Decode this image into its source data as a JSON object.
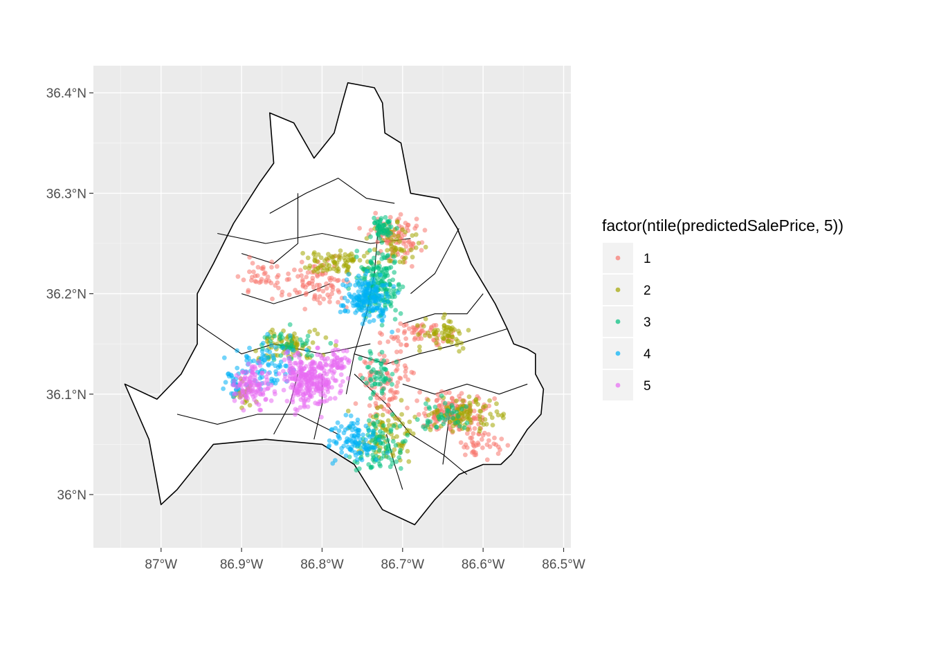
{
  "chart_data": {
    "type": "scatter",
    "title": "",
    "xlabel": "",
    "ylabel": "",
    "xlim": [
      -87.084,
      -86.491
    ],
    "ylim": [
      35.947,
      36.427
    ],
    "x_ticks": [
      {
        "value": -87.0,
        "label": "87°W"
      },
      {
        "value": -86.9,
        "label": "86.9°W"
      },
      {
        "value": -86.8,
        "label": "86.8°W"
      },
      {
        "value": -86.7,
        "label": "86.7°W"
      },
      {
        "value": -86.6,
        "label": "86.6°W"
      },
      {
        "value": -86.5,
        "label": "86.5°W"
      }
    ],
    "y_ticks": [
      {
        "value": 36.0,
        "label": "36°N"
      },
      {
        "value": 36.1,
        "label": "36.1°N"
      },
      {
        "value": 36.2,
        "label": "36.2°N"
      },
      {
        "value": 36.3,
        "label": "36.3°N"
      },
      {
        "value": 36.4,
        "label": "36.4°N"
      }
    ],
    "grid": true,
    "panel_background": "#ebebeb",
    "boundary_outline": [
      [
        -86.768,
        36.41
      ],
      [
        -86.735,
        36.405
      ],
      [
        -86.725,
        36.39
      ],
      [
        -86.722,
        36.36
      ],
      [
        -86.702,
        36.35
      ],
      [
        -86.69,
        36.3
      ],
      [
        -86.655,
        36.295
      ],
      [
        -86.632,
        36.265
      ],
      [
        -86.615,
        36.23
      ],
      [
        -86.6,
        36.21
      ],
      [
        -86.585,
        36.19
      ],
      [
        -86.57,
        36.165
      ],
      [
        -86.562,
        36.15
      ],
      [
        -86.545,
        36.145
      ],
      [
        -86.535,
        36.14
      ],
      [
        -86.535,
        36.12
      ],
      [
        -86.525,
        36.105
      ],
      [
        -86.528,
        36.08
      ],
      [
        -86.545,
        36.065
      ],
      [
        -86.565,
        36.04
      ],
      [
        -86.578,
        36.03
      ],
      [
        -86.6,
        36.03
      ],
      [
        -86.63,
        36.02
      ],
      [
        -86.66,
        35.995
      ],
      [
        -86.685,
        35.97
      ],
      [
        -86.725,
        35.985
      ],
      [
        -86.76,
        36.03
      ],
      [
        -86.8,
        36.05
      ],
      [
        -86.87,
        36.055
      ],
      [
        -86.935,
        36.05
      ],
      [
        -86.98,
        36.005
      ],
      [
        -87.0,
        35.99
      ],
      [
        -87.015,
        36.055
      ],
      [
        -87.045,
        36.11
      ],
      [
        -87.005,
        36.095
      ],
      [
        -86.975,
        36.12
      ],
      [
        -86.955,
        36.15
      ],
      [
        -86.955,
        36.2
      ],
      [
        -86.935,
        36.23
      ],
      [
        -86.91,
        36.27
      ],
      [
        -86.878,
        36.31
      ],
      [
        -86.86,
        36.33
      ],
      [
        -86.865,
        36.38
      ],
      [
        -86.835,
        36.37
      ],
      [
        -86.81,
        36.335
      ],
      [
        -86.785,
        36.36
      ],
      [
        -86.775,
        36.39
      ],
      [
        -86.768,
        36.41
      ]
    ],
    "internal_boundaries": [
      [
        [
          -86.93,
          36.26
        ],
        [
          -86.87,
          36.25
        ],
        [
          -86.8,
          36.26
        ],
        [
          -86.74,
          36.25
        ],
        [
          -86.69,
          36.255
        ]
      ],
      [
        [
          -86.865,
          36.28
        ],
        [
          -86.82,
          36.3
        ],
        [
          -86.78,
          36.315
        ],
        [
          -86.745,
          36.295
        ],
        [
          -86.71,
          36.29
        ]
      ],
      [
        [
          -86.955,
          36.17
        ],
        [
          -86.9,
          36.14
        ],
        [
          -86.86,
          36.15
        ],
        [
          -86.8,
          36.14
        ],
        [
          -86.74,
          36.15
        ]
      ],
      [
        [
          -86.73,
          36.27
        ],
        [
          -86.735,
          36.22
        ],
        [
          -86.745,
          36.18
        ],
        [
          -86.76,
          36.14
        ],
        [
          -86.77,
          36.1
        ]
      ],
      [
        [
          -86.76,
          36.14
        ],
        [
          -86.72,
          36.13
        ],
        [
          -86.68,
          36.14
        ],
        [
          -86.63,
          36.15
        ],
        [
          -86.57,
          36.165
        ]
      ],
      [
        [
          -86.98,
          36.08
        ],
        [
          -86.93,
          36.07
        ],
        [
          -86.88,
          36.08
        ],
        [
          -86.83,
          36.08
        ],
        [
          -86.78,
          36.06
        ]
      ],
      [
        [
          -86.76,
          36.12
        ],
        [
          -86.72,
          36.09
        ],
        [
          -86.69,
          36.06
        ],
        [
          -86.65,
          36.04
        ],
        [
          -86.62,
          36.02
        ]
      ],
      [
        [
          -86.69,
          36.2
        ],
        [
          -86.66,
          36.22
        ],
        [
          -86.64,
          36.25
        ],
        [
          -86.63,
          36.265
        ]
      ],
      [
        [
          -86.9,
          36.2
        ],
        [
          -86.86,
          36.19
        ],
        [
          -86.82,
          36.2
        ],
        [
          -86.79,
          36.21
        ]
      ],
      [
        [
          -86.7,
          36.11
        ],
        [
          -86.66,
          36.1
        ],
        [
          -86.62,
          36.11
        ],
        [
          -86.58,
          36.1
        ],
        [
          -86.545,
          36.11
        ]
      ],
      [
        [
          -86.83,
          36.12
        ],
        [
          -86.84,
          36.09
        ],
        [
          -86.86,
          36.06
        ]
      ],
      [
        [
          -86.8,
          36.12
        ],
        [
          -86.8,
          36.09
        ],
        [
          -86.81,
          36.055
        ]
      ],
      [
        [
          -86.72,
          36.06
        ],
        [
          -86.71,
          36.03
        ],
        [
          -86.7,
          36.005
        ]
      ],
      [
        [
          -86.64,
          36.09
        ],
        [
          -86.645,
          36.06
        ],
        [
          -86.65,
          36.03
        ]
      ],
      [
        [
          -86.9,
          36.24
        ],
        [
          -86.86,
          36.23
        ],
        [
          -86.83,
          36.25
        ],
        [
          -86.83,
          36.3
        ]
      ],
      [
        [
          -86.7,
          36.17
        ],
        [
          -86.66,
          36.18
        ],
        [
          -86.62,
          36.18
        ],
        [
          -86.6,
          36.2
        ]
      ]
    ],
    "legend": {
      "title": "factor(ntile(predictedSalePrice, 5))",
      "placement": "right",
      "entries": [
        {
          "label": "1",
          "color": "#f8766d"
        },
        {
          "label": "2",
          "color": "#a3a500"
        },
        {
          "label": "3",
          "color": "#00bf7d"
        },
        {
          "label": "4",
          "color": "#00b0f6"
        },
        {
          "label": "5",
          "color": "#e76bf3"
        }
      ]
    },
    "point_alpha": 0.55,
    "series": [
      {
        "name": "1",
        "clusters": [
          {
            "lon": -86.71,
            "lat": 36.255,
            "spread_lon": 0.03,
            "spread_lat": 0.02,
            "n": 90
          },
          {
            "lon": -86.8,
            "lat": 36.21,
            "spread_lon": 0.035,
            "spread_lat": 0.02,
            "n": 80
          },
          {
            "lon": -86.87,
            "lat": 36.215,
            "spread_lon": 0.025,
            "spread_lat": 0.015,
            "n": 40
          },
          {
            "lon": -86.64,
            "lat": 36.08,
            "spread_lon": 0.04,
            "spread_lat": 0.018,
            "n": 140
          },
          {
            "lon": -86.72,
            "lat": 36.11,
            "spread_lon": 0.03,
            "spread_lat": 0.03,
            "n": 90
          },
          {
            "lon": -86.68,
            "lat": 36.16,
            "spread_lon": 0.035,
            "spread_lat": 0.012,
            "n": 60
          },
          {
            "lon": -86.6,
            "lat": 36.05,
            "spread_lon": 0.025,
            "spread_lat": 0.015,
            "n": 40
          }
        ]
      },
      {
        "name": "2",
        "clusters": [
          {
            "lon": -86.78,
            "lat": 36.23,
            "spread_lon": 0.04,
            "spread_lat": 0.012,
            "n": 80
          },
          {
            "lon": -86.84,
            "lat": 36.15,
            "spread_lon": 0.04,
            "spread_lat": 0.015,
            "n": 80
          },
          {
            "lon": -86.65,
            "lat": 36.16,
            "spread_lon": 0.03,
            "spread_lat": 0.012,
            "n": 60
          },
          {
            "lon": -86.62,
            "lat": 36.08,
            "spread_lon": 0.04,
            "spread_lat": 0.015,
            "n": 100
          },
          {
            "lon": -86.72,
            "lat": 36.06,
            "spread_lon": 0.035,
            "spread_lat": 0.025,
            "n": 80
          },
          {
            "lon": -86.71,
            "lat": 36.25,
            "spread_lon": 0.025,
            "spread_lat": 0.02,
            "n": 50
          },
          {
            "lon": -86.9,
            "lat": 36.1,
            "spread_lon": 0.015,
            "spread_lat": 0.015,
            "n": 25
          }
        ]
      },
      {
        "name": "3",
        "clusters": [
          {
            "lon": -86.73,
            "lat": 36.21,
            "spread_lon": 0.025,
            "spread_lat": 0.03,
            "n": 170
          },
          {
            "lon": -86.725,
            "lat": 36.265,
            "spread_lon": 0.012,
            "spread_lat": 0.012,
            "n": 50
          },
          {
            "lon": -86.73,
            "lat": 36.05,
            "spread_lon": 0.03,
            "spread_lat": 0.025,
            "n": 90
          },
          {
            "lon": -86.84,
            "lat": 36.15,
            "spread_lon": 0.035,
            "spread_lat": 0.015,
            "n": 40
          },
          {
            "lon": -86.73,
            "lat": 36.12,
            "spread_lon": 0.02,
            "spread_lat": 0.02,
            "n": 50
          },
          {
            "lon": -86.65,
            "lat": 36.08,
            "spread_lon": 0.03,
            "spread_lat": 0.015,
            "n": 40
          }
        ]
      },
      {
        "name": "4",
        "clusters": [
          {
            "lon": -86.745,
            "lat": 36.195,
            "spread_lon": 0.025,
            "spread_lat": 0.02,
            "n": 170
          },
          {
            "lon": -86.76,
            "lat": 36.055,
            "spread_lon": 0.025,
            "spread_lat": 0.02,
            "n": 100
          },
          {
            "lon": -86.87,
            "lat": 36.13,
            "spread_lon": 0.035,
            "spread_lat": 0.02,
            "n": 80
          },
          {
            "lon": -86.91,
            "lat": 36.11,
            "spread_lon": 0.012,
            "spread_lat": 0.015,
            "n": 25
          }
        ]
      },
      {
        "name": "5",
        "clusters": [
          {
            "lon": -86.815,
            "lat": 36.115,
            "spread_lon": 0.03,
            "spread_lat": 0.025,
            "n": 280
          },
          {
            "lon": -86.885,
            "lat": 36.11,
            "spread_lon": 0.02,
            "spread_lat": 0.02,
            "n": 110
          },
          {
            "lon": -86.78,
            "lat": 36.13,
            "spread_lon": 0.015,
            "spread_lat": 0.015,
            "n": 40
          }
        ]
      }
    ]
  }
}
